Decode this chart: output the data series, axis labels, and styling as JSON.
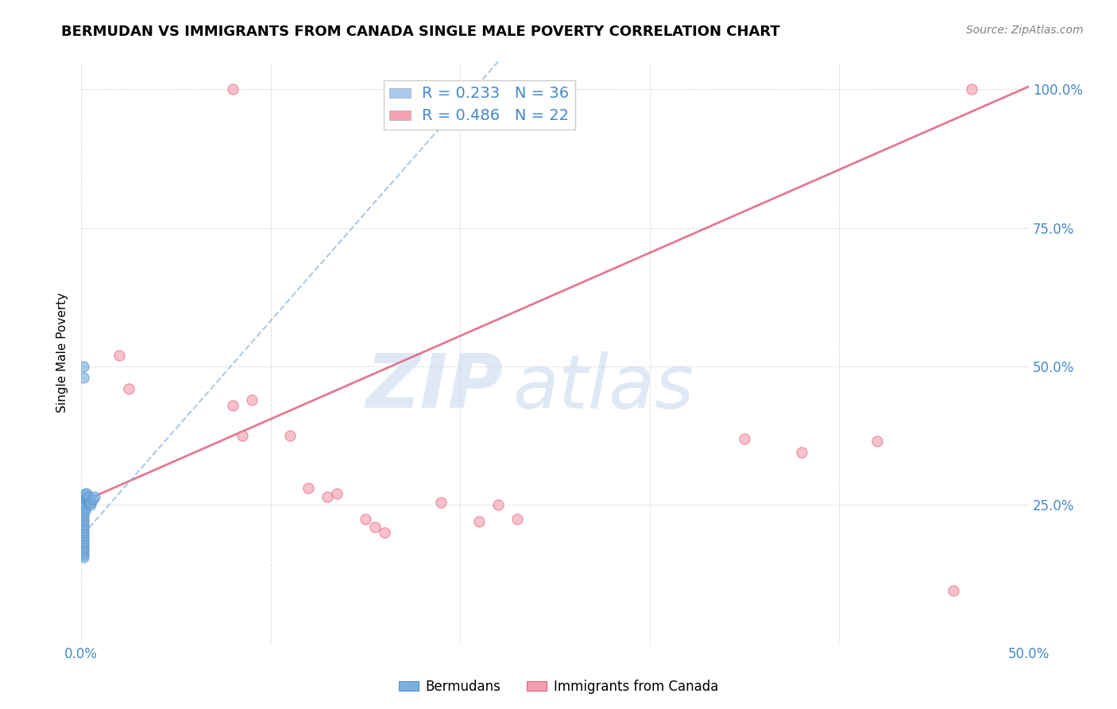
{
  "title": "BERMUDAN VS IMMIGRANTS FROM CANADA SINGLE MALE POVERTY CORRELATION CHART",
  "source": "Source: ZipAtlas.com",
  "ylabel": "Single Male Poverty",
  "xlim": [
    0.0,
    0.5
  ],
  "ylim": [
    0.0,
    1.05
  ],
  "legend_entries": [
    {
      "label": "R = 0.233   N = 36",
      "color": "#a8c8f0"
    },
    {
      "label": "R = 0.486   N = 22",
      "color": "#f5a0b0"
    }
  ],
  "legend_label_color": "#4488cc",
  "bermudans_x": [
    0.001,
    0.001,
    0.001,
    0.001,
    0.001,
    0.001,
    0.001,
    0.001,
    0.001,
    0.001,
    0.001,
    0.001,
    0.001,
    0.001,
    0.001,
    0.001,
    0.001,
    0.002,
    0.002,
    0.002,
    0.002,
    0.002,
    0.002,
    0.002,
    0.003,
    0.003,
    0.003,
    0.004,
    0.004,
    0.004,
    0.005,
    0.005,
    0.006,
    0.007,
    0.001,
    0.001
  ],
  "bermudans_y": [
    0.155,
    0.16,
    0.165,
    0.17,
    0.175,
    0.18,
    0.185,
    0.19,
    0.195,
    0.2,
    0.205,
    0.21,
    0.215,
    0.22,
    0.225,
    0.23,
    0.235,
    0.24,
    0.245,
    0.25,
    0.255,
    0.26,
    0.265,
    0.27,
    0.26,
    0.265,
    0.27,
    0.255,
    0.26,
    0.265,
    0.25,
    0.255,
    0.26,
    0.265,
    0.48,
    0.5
  ],
  "canada_x": [
    0.02,
    0.025,
    0.08,
    0.085,
    0.09,
    0.11,
    0.12,
    0.13,
    0.135,
    0.15,
    0.155,
    0.16,
    0.19,
    0.21,
    0.22,
    0.23,
    0.35,
    0.38,
    0.42,
    0.46,
    0.47,
    0.08
  ],
  "canada_y": [
    0.52,
    0.46,
    0.43,
    0.375,
    0.44,
    0.375,
    0.28,
    0.265,
    0.27,
    0.225,
    0.21,
    0.2,
    0.255,
    0.22,
    0.25,
    0.225,
    0.37,
    0.345,
    0.365,
    0.095,
    1.0,
    1.0
  ],
  "bermudans_color": "#7ab0e0",
  "bermudans_edge": "#5590cc",
  "canada_color": "#f5a0b0",
  "canada_edge": "#e06080",
  "trendline_blue_color": "#8ab4d8",
  "trendline_pink_color": "#e06080",
  "watermark_zip": "ZIP",
  "watermark_atlas": "atlas",
  "background_color": "#ffffff",
  "grid_color": "#dddddd",
  "tick_color": "#4488cc",
  "title_fontsize": 13,
  "source_fontsize": 10
}
